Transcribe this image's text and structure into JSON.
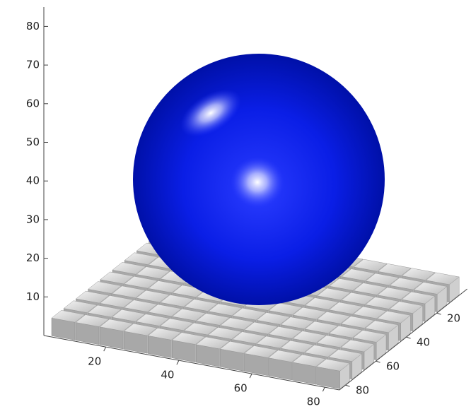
{
  "chart_data": {
    "type": "surface3d",
    "xlim": [
      3,
      84
    ],
    "ylim": [
      0,
      84
    ],
    "zlim": [
      0,
      85
    ],
    "xticks": [
      20,
      40,
      60,
      80
    ],
    "yticks": [
      20,
      40,
      60,
      80
    ],
    "zticks": [
      10,
      20,
      30,
      40,
      50,
      60,
      70,
      80
    ]
  }
}
